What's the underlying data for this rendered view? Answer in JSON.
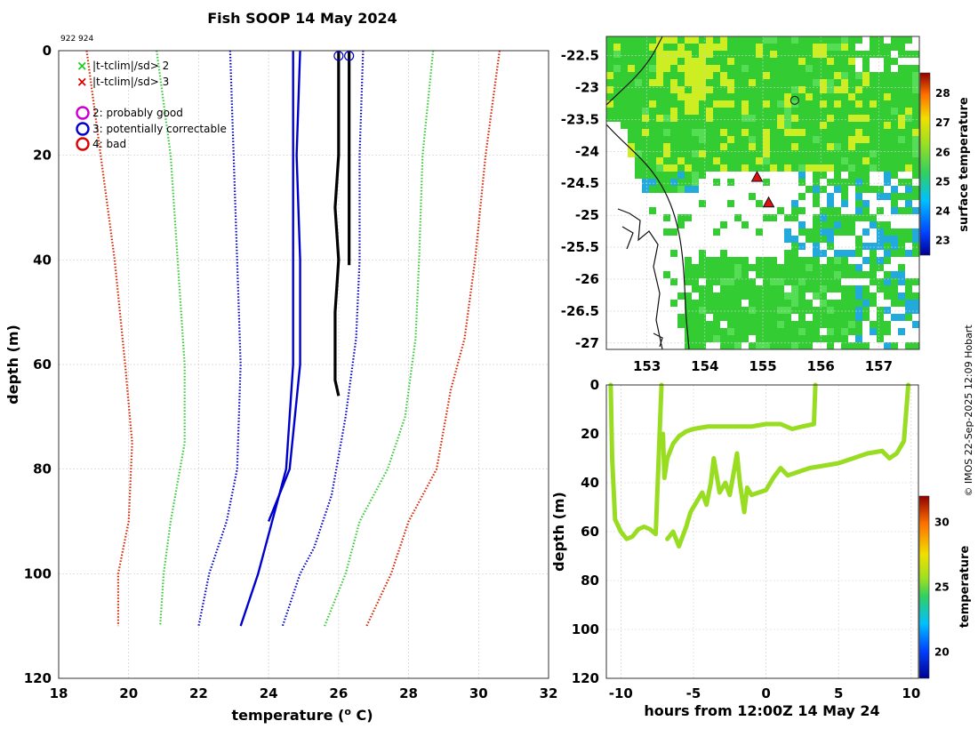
{
  "title": "Fish SOOP 14 May 2024",
  "profile_ids": "922 924",
  "credit": "© IMOS 22-Sep-2025 12:09 Hobart",
  "colors": {
    "green_clim": "#33cc33",
    "red_clim": "#dd2200",
    "blue_clim": "#0000cc",
    "mean_profile": "#0000cc",
    "observed": "#000000",
    "trace": "#99dd22",
    "map_green": "#33cc33",
    "map_yellow": "#ccee22",
    "map_cyan": "#22aadd",
    "flag_good": "#cc00cc",
    "flag_correctable": "#0000cc",
    "flag_bad": "#dd0000"
  },
  "legend": [
    {
      "symbol": "×",
      "color": "#22cc22",
      "label": "|t-tclim|/sd> 2"
    },
    {
      "symbol": "×",
      "color": "#dd0000",
      "label": "|t-tclim|/sd> 3"
    },
    {
      "symbol": "○",
      "color": "#cc00cc",
      "label": "2: probably good"
    },
    {
      "symbol": "○",
      "color": "#0000cc",
      "label": "3: potentially correctable"
    },
    {
      "symbol": "○",
      "color": "#dd0000",
      "label": "4: bad"
    }
  ],
  "chart_data": [
    {
      "type": "line",
      "xlabel": "temperature (o C)",
      "ylabel": "depth (m)",
      "xlim": [
        18,
        32
      ],
      "ylim": [
        120,
        0
      ],
      "xticks": [
        18,
        20,
        22,
        24,
        26,
        28,
        30,
        32
      ],
      "yticks": [
        0,
        20,
        40,
        60,
        80,
        100,
        120
      ],
      "grid": true,
      "series": [
        {
          "name": "clim -3sd",
          "color": "#dd2200",
          "style": "dotted",
          "points": [
            [
              18.8,
              0
            ],
            [
              19.2,
              20
            ],
            [
              19.6,
              40
            ],
            [
              19.9,
              60
            ],
            [
              20.1,
              75
            ],
            [
              20.0,
              90
            ],
            [
              19.7,
              100
            ],
            [
              19.7,
              110
            ]
          ]
        },
        {
          "name": "clim -2sd",
          "color": "#33cc33",
          "style": "dotted",
          "points": [
            [
              20.8,
              0
            ],
            [
              21.2,
              20
            ],
            [
              21.4,
              40
            ],
            [
              21.6,
              60
            ],
            [
              21.6,
              75
            ],
            [
              21.2,
              90
            ],
            [
              21.0,
              100
            ],
            [
              20.9,
              110
            ]
          ]
        },
        {
          "name": "clim -1sd",
          "color": "#0000cc",
          "style": "dotted",
          "points": [
            [
              22.9,
              0
            ],
            [
              23.0,
              20
            ],
            [
              23.1,
              40
            ],
            [
              23.2,
              60
            ],
            [
              23.1,
              80
            ],
            [
              22.8,
              90
            ],
            [
              22.3,
              100
            ],
            [
              22.0,
              110
            ]
          ]
        },
        {
          "name": "clim mean",
          "color": "#0000cc",
          "style": "solid",
          "points": [
            [
              24.7,
              0
            ],
            [
              24.7,
              20
            ],
            [
              24.7,
              40
            ],
            [
              24.7,
              60
            ],
            [
              24.5,
              80
            ],
            [
              24.1,
              90
            ],
            [
              23.7,
              100
            ],
            [
              23.2,
              110
            ]
          ]
        },
        {
          "name": "clim mean (profile 2)",
          "color": "#0000cc",
          "style": "solid",
          "points": [
            [
              24.9,
              0
            ],
            [
              24.8,
              20
            ],
            [
              24.9,
              40
            ],
            [
              24.9,
              60
            ],
            [
              24.6,
              80
            ],
            [
              24.0,
              90
            ]
          ]
        },
        {
          "name": "clim +1sd",
          "color": "#0000cc",
          "style": "dotted",
          "points": [
            [
              26.7,
              0
            ],
            [
              26.6,
              20
            ],
            [
              26.6,
              40
            ],
            [
              26.5,
              55
            ],
            [
              26.2,
              70
            ],
            [
              25.8,
              85
            ],
            [
              25.3,
              95
            ],
            [
              24.9,
              100
            ],
            [
              24.4,
              110
            ]
          ]
        },
        {
          "name": "clim +2sd",
          "color": "#33cc33",
          "style": "dotted",
          "points": [
            [
              28.7,
              0
            ],
            [
              28.4,
              20
            ],
            [
              28.3,
              40
            ],
            [
              28.2,
              55
            ],
            [
              27.9,
              70
            ],
            [
              27.4,
              80
            ],
            [
              26.6,
              90
            ],
            [
              26.2,
              100
            ],
            [
              25.6,
              110
            ]
          ]
        },
        {
          "name": "clim +3sd",
          "color": "#dd2200",
          "style": "dotted",
          "points": [
            [
              30.6,
              0
            ],
            [
              30.2,
              20
            ],
            [
              29.9,
              40
            ],
            [
              29.6,
              55
            ],
            [
              29.2,
              65
            ],
            [
              28.8,
              80
            ],
            [
              28.0,
              90
            ],
            [
              27.5,
              100
            ],
            [
              26.8,
              110
            ]
          ]
        },
        {
          "name": "observed 922",
          "color": "#000000",
          "style": "solid",
          "points": [
            [
              26.0,
              0
            ],
            [
              26.0,
              10
            ],
            [
              26.0,
              20
            ],
            [
              25.9,
              30
            ],
            [
              26.0,
              40
            ],
            [
              25.9,
              50
            ],
            [
              25.9,
              58
            ],
            [
              25.9,
              63
            ],
            [
              26.0,
              66
            ]
          ]
        },
        {
          "name": "observed 924",
          "color": "#000000",
          "style": "solid",
          "points": [
            [
              26.3,
              0
            ],
            [
              26.3,
              10
            ],
            [
              26.3,
              20
            ],
            [
              26.3,
              30
            ],
            [
              26.3,
              40
            ],
            [
              26.3,
              41
            ]
          ]
        }
      ],
      "flags": [
        {
          "type": "potentially correctable",
          "x": 26.0,
          "y": 1
        },
        {
          "type": "potentially correctable",
          "x": 26.3,
          "y": 1
        }
      ]
    },
    {
      "type": "heatmap",
      "colorbar_label": "surface temperature",
      "xlim": [
        152.3,
        157.7
      ],
      "ylim": [
        -27.1,
        -22.2
      ],
      "xticks": [
        153,
        154,
        155,
        156,
        157
      ],
      "yticks": [
        -22.5,
        -23,
        -23.5,
        -24,
        -24.5,
        -25,
        -25.5,
        -26,
        -26.5,
        -27
      ],
      "cbar_ticks": [
        23,
        24,
        25,
        26,
        27,
        28
      ],
      "cbar_range": [
        22.5,
        28.7
      ],
      "stations": [
        {
          "type": "triangle",
          "lon": 154.9,
          "lat": -24.4
        },
        {
          "type": "triangle",
          "lon": 155.1,
          "lat": -24.8
        },
        {
          "type": "circle",
          "lon": 155.55,
          "lat": -23.2
        }
      ]
    },
    {
      "type": "scatter",
      "xlabel": "hours from 12:00Z 14 May 24",
      "ylabel": "depth (m)",
      "xlim": [
        -11,
        10.5
      ],
      "ylim": [
        120,
        0
      ],
      "xticks": [
        -10,
        -5,
        0,
        5,
        10
      ],
      "yticks": [
        0,
        20,
        40,
        60,
        80,
        100,
        120
      ],
      "colorbar_label": "temperature",
      "cbar_ticks": [
        20,
        25,
        30
      ],
      "cbar_range": [
        18,
        32
      ],
      "series": [
        {
          "name": "trace A",
          "color": "#99dd22",
          "points": [
            [
              -10.7,
              0
            ],
            [
              -10.6,
              30
            ],
            [
              -10.4,
              55
            ],
            [
              -10.0,
              60
            ],
            [
              -9.6,
              63
            ],
            [
              -9.2,
              62
            ],
            [
              -8.8,
              59
            ],
            [
              -8.4,
              58
            ],
            [
              -8.0,
              59
            ],
            [
              -7.6,
              61
            ],
            [
              -7.2,
              0
            ]
          ]
        },
        {
          "name": "trace B",
          "color": "#99dd22",
          "points": [
            [
              -7.1,
              20
            ],
            [
              -7.0,
              38
            ],
            [
              -6.8,
              30
            ],
            [
              -6.4,
              24
            ],
            [
              -6.0,
              21
            ],
            [
              -5.5,
              19
            ],
            [
              -5.0,
              18
            ],
            [
              -4.0,
              17
            ],
            [
              -3.0,
              17
            ],
            [
              -2.0,
              17
            ],
            [
              -1.0,
              17
            ],
            [
              0.0,
              16
            ],
            [
              1.0,
              16
            ],
            [
              1.8,
              18
            ],
            [
              2.5,
              17
            ],
            [
              3.3,
              16
            ],
            [
              3.4,
              0
            ]
          ]
        },
        {
          "name": "trace C",
          "color": "#99dd22",
          "points": [
            [
              -6.8,
              63
            ],
            [
              -6.4,
              60
            ],
            [
              -6.0,
              66
            ],
            [
              -5.5,
              58
            ],
            [
              -5.2,
              52
            ],
            [
              -4.8,
              48
            ],
            [
              -4.4,
              44
            ],
            [
              -4.1,
              49
            ],
            [
              -3.8,
              40
            ],
            [
              -3.6,
              30
            ],
            [
              -3.2,
              44
            ],
            [
              -2.8,
              40
            ],
            [
              -2.5,
              45
            ],
            [
              -2.2,
              35
            ],
            [
              -2.0,
              28
            ],
            [
              -1.8,
              40
            ],
            [
              -1.5,
              52
            ],
            [
              -1.3,
              42
            ],
            [
              -1.0,
              45
            ],
            [
              -0.5,
              44
            ],
            [
              0.0,
              43
            ],
            [
              0.5,
              38
            ],
            [
              1.0,
              34
            ],
            [
              1.5,
              37
            ],
            [
              2.0,
              36
            ],
            [
              3.0,
              34
            ],
            [
              4.0,
              33
            ],
            [
              5.0,
              32
            ],
            [
              6.0,
              30
            ],
            [
              7.0,
              28
            ],
            [
              8.0,
              27
            ],
            [
              8.5,
              30
            ],
            [
              9.0,
              28
            ],
            [
              9.5,
              23
            ],
            [
              9.8,
              0
            ]
          ]
        }
      ]
    }
  ]
}
